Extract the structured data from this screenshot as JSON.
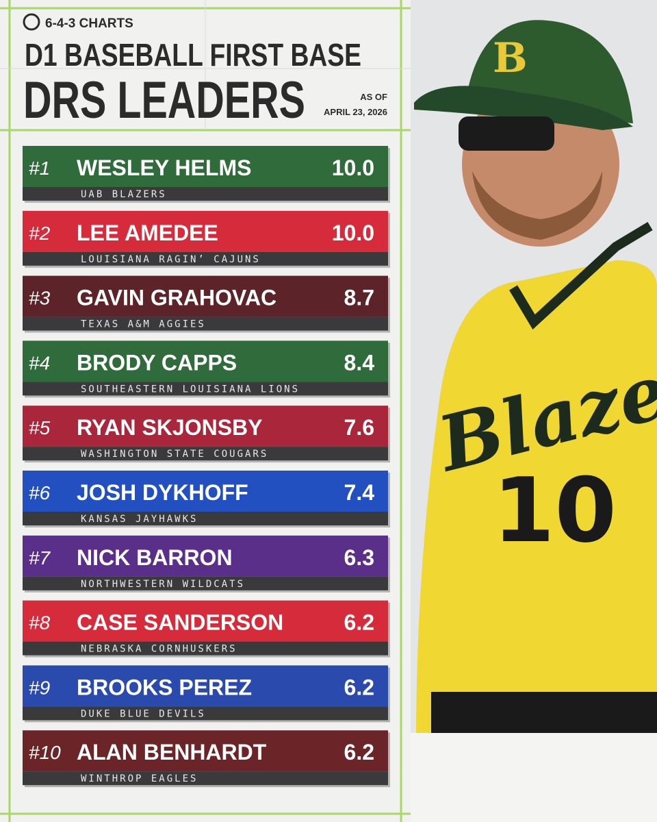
{
  "header": {
    "brand": "6-4-3 CHARTS",
    "title": "D1 BASEBALL FIRST BASE",
    "subtitle": "DRS LEADERS",
    "as_of_label": "AS OF",
    "as_of_date": "APRIL 23, 2026"
  },
  "rows": [
    {
      "rank": "#1",
      "name": "WESLEY HELMS",
      "team": "UAB BLAZERS",
      "value": "10.0",
      "color": "#2f6b3b"
    },
    {
      "rank": "#2",
      "name": "LEE AMEDEE",
      "team": "LOUISIANA RAGIN’ CAJUNS",
      "value": "10.0",
      "color": "#d52b3a"
    },
    {
      "rank": "#3",
      "name": "GAVIN GRAHOVAC",
      "team": "TEXAS A&M AGGIES",
      "value": "8.7",
      "color": "#5c2429"
    },
    {
      "rank": "#4",
      "name": "BRODY CAPPS",
      "team": "SOUTHEASTERN LOUISIANA LIONS",
      "value": "8.4",
      "color": "#2f6b3b"
    },
    {
      "rank": "#5",
      "name": "RYAN SKJONSBY",
      "team": "WASHINGTON STATE COUGARS",
      "value": "7.6",
      "color": "#a9263b"
    },
    {
      "rank": "#6",
      "name": "JOSH DYKHOFF",
      "team": "KANSAS JAYHAWKS",
      "value": "7.4",
      "color": "#2250c0"
    },
    {
      "rank": "#7",
      "name": "NICK BARRON",
      "team": "NORTHWESTERN WILDCATS",
      "value": "6.3",
      "color": "#5a2f8a"
    },
    {
      "rank": "#8",
      "name": "CASE SANDERSON",
      "team": "NEBRASKA CORNHUSKERS",
      "value": "6.2",
      "color": "#d52b3a"
    },
    {
      "rank": "#9",
      "name": "BROOKS PEREZ",
      "team": "DUKE BLUE DEVILS",
      "value": "6.2",
      "color": "#2a4aae"
    },
    {
      "rank": "#10",
      "name": "ALAN BENHARDT",
      "team": "WINTHROP EAGLES",
      "value": "6.2",
      "color": "#6b2529"
    }
  ]
}
